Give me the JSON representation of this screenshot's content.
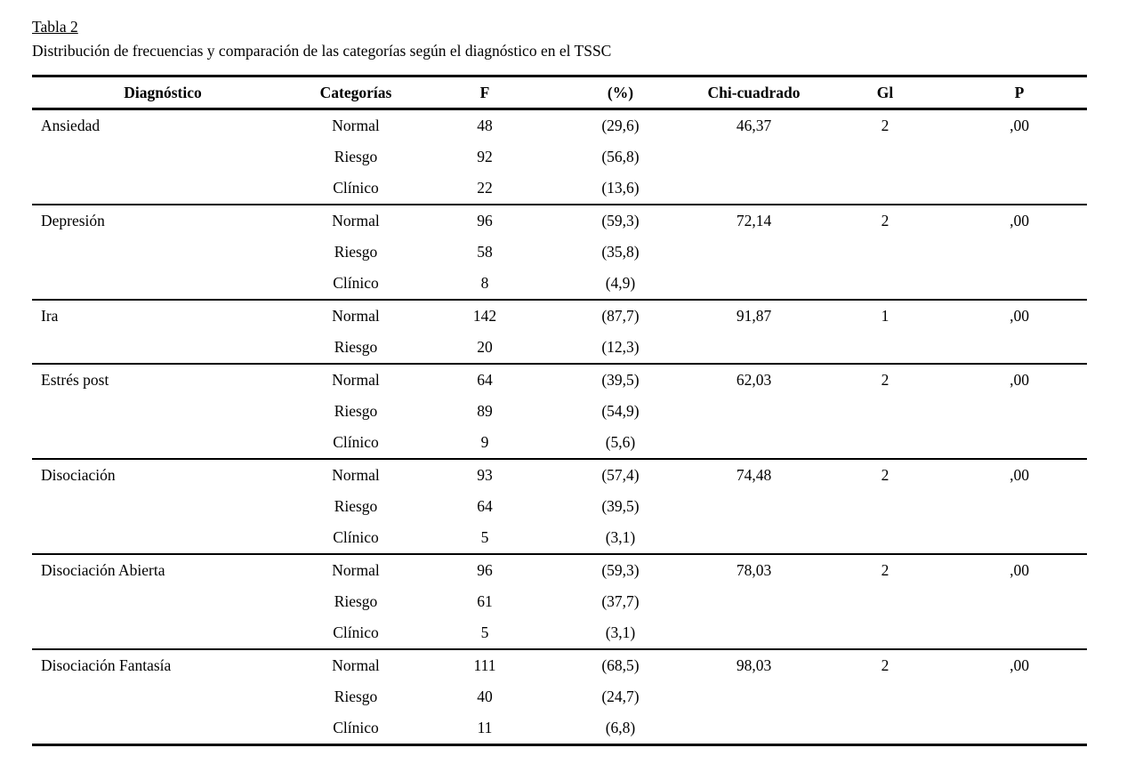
{
  "table": {
    "title": "Tabla 2",
    "subtitle": "Distribución de frecuencias y comparación de las categorías según el diagnóstico en el TSSC",
    "columns": [
      "Diagnóstico",
      "Categorías",
      "F",
      "(%)",
      "Chi-cuadrado",
      "Gl",
      "P"
    ],
    "groups": [
      {
        "diagnostico": "Ansiedad",
        "chi_cuadrado": "46,37",
        "gl": "2",
        "p": ",00",
        "rows": [
          {
            "categoria": "Normal",
            "f": "48",
            "pct": "(29,6)"
          },
          {
            "categoria": "Riesgo",
            "f": "92",
            "pct": "(56,8)"
          },
          {
            "categoria": "Clínico",
            "f": "22",
            "pct": "(13,6)"
          }
        ]
      },
      {
        "diagnostico": "Depresión",
        "chi_cuadrado": "72,14",
        "gl": "2",
        "p": ",00",
        "rows": [
          {
            "categoria": "Normal",
            "f": "96",
            "pct": "(59,3)"
          },
          {
            "categoria": "Riesgo",
            "f": "58",
            "pct": "(35,8)"
          },
          {
            "categoria": "Clínico",
            "f": "8",
            "pct": "(4,9)"
          }
        ]
      },
      {
        "diagnostico": "Ira",
        "chi_cuadrado": "91,87",
        "gl": "1",
        "p": ",00",
        "rows": [
          {
            "categoria": "Normal",
            "f": "142",
            "pct": "(87,7)"
          },
          {
            "categoria": "Riesgo",
            "f": "20",
            "pct": "(12,3)"
          }
        ]
      },
      {
        "diagnostico": "Estrés post",
        "chi_cuadrado": "62,03",
        "gl": "2",
        "p": ",00",
        "rows": [
          {
            "categoria": "Normal",
            "f": "64",
            "pct": "(39,5)"
          },
          {
            "categoria": "Riesgo",
            "f": "89",
            "pct": "(54,9)"
          },
          {
            "categoria": "Clínico",
            "f": "9",
            "pct": "(5,6)"
          }
        ]
      },
      {
        "diagnostico": "Disociación",
        "chi_cuadrado": "74,48",
        "gl": "2",
        "p": ",00",
        "rows": [
          {
            "categoria": "Normal",
            "f": "93",
            "pct": "(57,4)"
          },
          {
            "categoria": "Riesgo",
            "f": "64",
            "pct": "(39,5)"
          },
          {
            "categoria": "Clínico",
            "f": "5",
            "pct": "(3,1)"
          }
        ]
      },
      {
        "diagnostico": "Disociación Abierta",
        "chi_cuadrado": "78,03",
        "gl": "2",
        "p": ",00",
        "rows": [
          {
            "categoria": "Normal",
            "f": "96",
            "pct": "(59,3)"
          },
          {
            "categoria": "Riesgo",
            "f": "61",
            "pct": "(37,7)"
          },
          {
            "categoria": "Clínico",
            "f": "5",
            "pct": "(3,1)"
          }
        ]
      },
      {
        "diagnostico": "Disociación Fantasía",
        "chi_cuadrado": "98,03",
        "gl": "2",
        "p": ",00",
        "rows": [
          {
            "categoria": "Normal",
            "f": "111",
            "pct": "(68,5)"
          },
          {
            "categoria": "Riesgo",
            "f": "40",
            "pct": "(24,7)"
          },
          {
            "categoria": "Clínico",
            "f": "11",
            "pct": "(6,8)"
          }
        ]
      }
    ]
  }
}
